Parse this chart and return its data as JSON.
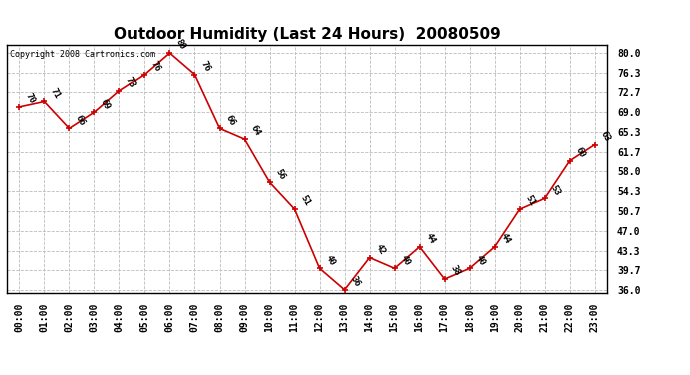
{
  "title": "Outdoor Humidity (Last 24 Hours)  20080509",
  "copyright_text": "Copyright 2008 Cartronics.com",
  "hours": [
    0,
    1,
    2,
    3,
    4,
    5,
    6,
    7,
    8,
    9,
    10,
    11,
    12,
    13,
    14,
    15,
    16,
    17,
    18,
    19,
    20,
    21,
    22,
    23
  ],
  "values": [
    70,
    71,
    66,
    69,
    73,
    76,
    80,
    76,
    66,
    64,
    56,
    51,
    40,
    36,
    42,
    40,
    44,
    38,
    40,
    44,
    51,
    53,
    60,
    63
  ],
  "x_labels": [
    "00:00",
    "01:00",
    "02:00",
    "03:00",
    "04:00",
    "05:00",
    "06:00",
    "07:00",
    "08:00",
    "09:00",
    "10:00",
    "11:00",
    "12:00",
    "13:00",
    "14:00",
    "15:00",
    "16:00",
    "17:00",
    "18:00",
    "19:00",
    "20:00",
    "21:00",
    "22:00",
    "23:00"
  ],
  "y_ticks": [
    36.0,
    39.7,
    43.3,
    47.0,
    50.7,
    54.3,
    58.0,
    61.7,
    65.3,
    69.0,
    72.7,
    76.3,
    80.0
  ],
  "ylim": [
    35.5,
    81.5
  ],
  "xlim": [
    -0.5,
    23.5
  ],
  "line_color": "#cc0000",
  "marker_color": "#cc0000",
  "bg_color": "#ffffff",
  "grid_color": "#bbbbbb",
  "title_fontsize": 11,
  "label_fontsize": 7,
  "annotation_fontsize": 6.5,
  "copyright_fontsize": 6
}
